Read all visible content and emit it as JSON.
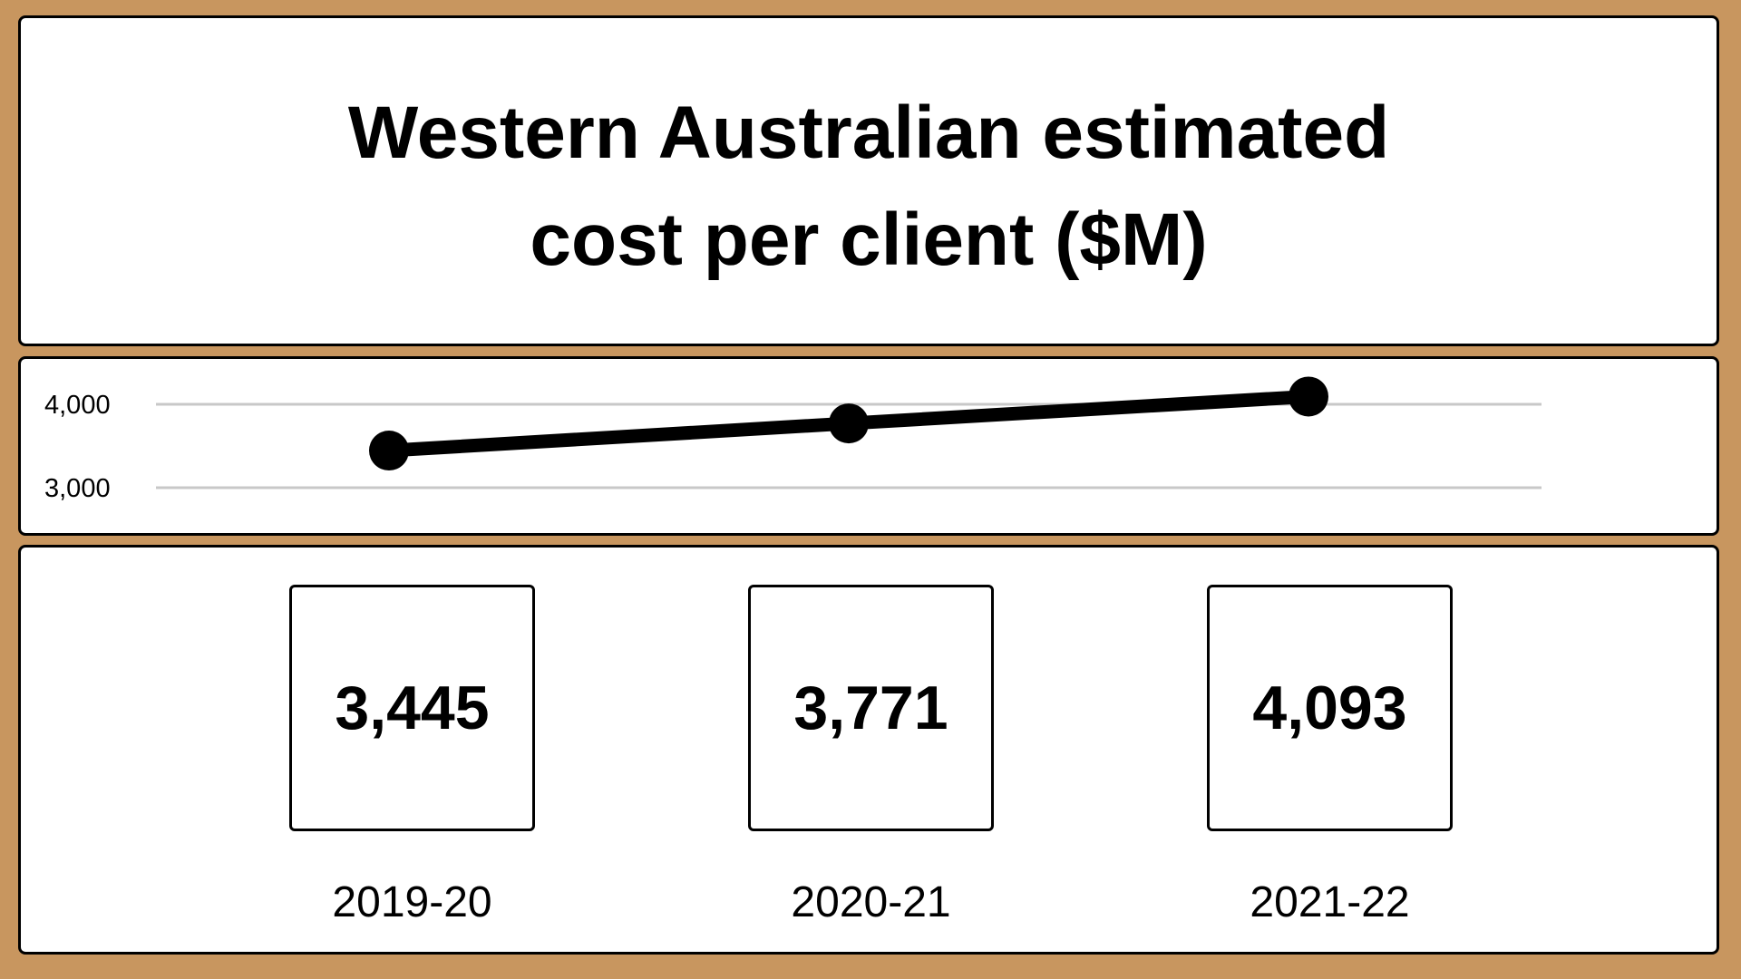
{
  "title_lines": [
    "Western Australian estimated",
    "cost per client ($M)"
  ],
  "chart_data": {
    "type": "line",
    "title": "Western Australian estimated cost per client ($M)",
    "categories": [
      "2019-20",
      "2020-21",
      "2021-22"
    ],
    "series": [
      {
        "values": [
          3445,
          3771,
          4093
        ]
      }
    ],
    "y_ticks": [
      {
        "value": 3000,
        "label": "3,000"
      },
      {
        "value": 4000,
        "label": "4,000"
      }
    ],
    "xlabel": "",
    "ylabel": "",
    "grid": true
  },
  "cards": [
    {
      "value": "3,445",
      "period": "2019-20"
    },
    {
      "value": "3,771",
      "period": "2020-21"
    },
    {
      "value": "4,093",
      "period": "2021-22"
    }
  ],
  "colors": {
    "background": "#c8965f",
    "panel": "#ffffff",
    "line": "#000000",
    "grid": "#c8c8c8"
  }
}
